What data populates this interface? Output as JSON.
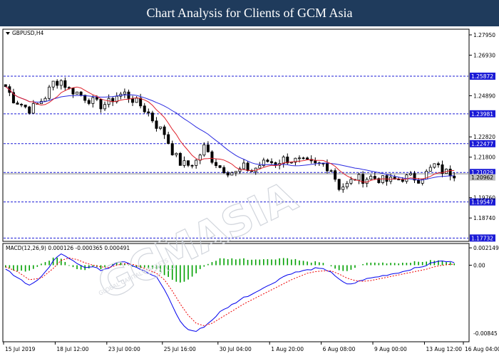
{
  "banner": {
    "title": "Chart Analysis for Clients of GCM Asia",
    "bg_color": "#1f3b5c"
  },
  "watermark": {
    "text": "GCMASIA",
    "subtext": "GLOBAL CAPITAL MARKETS"
  },
  "chart_data": [
    {
      "type": "candlestick",
      "symbol_label": "GBPUSD,H4",
      "ylim": [
        1.176,
        1.282
      ],
      "y_ticks": [
        1.2795,
        1.2693,
        1.2489,
        1.2282,
        1.218,
        1.1976,
        1.1874
      ],
      "current_price": 1.20962,
      "price_line_label": "1.20962",
      "levels": [
        {
          "value": 1.25872,
          "label": "1.25872"
        },
        {
          "value": 1.23981,
          "label": "1.23981"
        },
        {
          "value": 1.22477,
          "label": "1.22477"
        },
        {
          "value": 1.21029,
          "label": "1.21029"
        },
        {
          "value": 1.19547,
          "label": "1.19547"
        },
        {
          "value": 1.17732,
          "label": "1.17732"
        }
      ],
      "level_color": "#1b1bd6",
      "ma_fast_color": "#e0202a",
      "ma_slow_color": "#2a2ae0",
      "up_color": "#00a000",
      "down_color": "#d00000",
      "anchors": [
        [
          0,
          1.2535
        ],
        [
          2,
          1.247
        ],
        [
          6,
          1.242
        ],
        [
          8,
          1.2445
        ],
        [
          10,
          1.2485
        ],
        [
          12,
          1.2555
        ],
        [
          14,
          1.2565
        ],
        [
          16,
          1.252
        ],
        [
          18,
          1.2505
        ],
        [
          20,
          1.248
        ],
        [
          22,
          1.246
        ],
        [
          24,
          1.244
        ],
        [
          26,
          1.2455
        ],
        [
          28,
          1.249
        ],
        [
          30,
          1.25
        ],
        [
          32,
          1.247
        ],
        [
          34,
          1.244
        ],
        [
          36,
          1.24
        ],
        [
          38,
          1.234
        ],
        [
          40,
          1.23
        ],
        [
          42,
          1.221
        ],
        [
          44,
          1.215
        ],
        [
          46,
          1.214
        ],
        [
          48,
          1.216
        ],
        [
          50,
          1.223
        ],
        [
          52,
          1.217
        ],
        [
          54,
          1.213
        ],
        [
          56,
          1.211
        ],
        [
          58,
          1.21
        ],
        [
          60,
          1.213
        ],
        [
          62,
          1.211
        ],
        [
          64,
          1.214
        ],
        [
          66,
          1.216
        ],
        [
          68,
          1.215
        ],
        [
          70,
          1.217
        ],
        [
          72,
          1.2165
        ],
        [
          74,
          1.216
        ],
        [
          76,
          1.215
        ],
        [
          78,
          1.214
        ],
        [
          80,
          1.2145
        ],
        [
          82,
          1.212
        ],
        [
          84,
          1.203
        ],
        [
          86,
          1.204
        ],
        [
          88,
          1.2075
        ],
        [
          90,
          1.207
        ],
        [
          92,
          1.208
        ],
        [
          94,
          1.207
        ],
        [
          96,
          1.206
        ],
        [
          98,
          1.2065
        ],
        [
          100,
          1.2075
        ],
        [
          102,
          1.208
        ],
        [
          104,
          1.207
        ],
        [
          106,
          1.21
        ],
        [
          108,
          1.214
        ],
        [
          110,
          1.211
        ],
        [
          112,
          1.21
        ],
        [
          113,
          1.2096
        ]
      ]
    },
    {
      "type": "macd",
      "label": "MACD(12,26,9) 0.000126 -0.000365 0.000491",
      "ylim": [
        -0.0094,
        0.0026
      ],
      "y_ticks": [
        0.002149,
        0.0
      ],
      "y_tick_labels": [
        "0.002149",
        "0.00",
        "-0.00845"
      ],
      "bottom_value": -0.00845,
      "hist_color": "#00a000",
      "macd_color": "#0000ee",
      "signal_color": "#ee0000",
      "macd_anchors": [
        [
          0,
          -0.0005
        ],
        [
          3,
          -0.0015
        ],
        [
          6,
          -0.0025
        ],
        [
          9,
          -0.0015
        ],
        [
          12,
          0.0005
        ],
        [
          14,
          0.0015
        ],
        [
          16,
          0.0009
        ],
        [
          18,
          0.0003
        ],
        [
          20,
          -0.0003
        ],
        [
          22,
          -0.0002
        ],
        [
          24,
          -0.0006
        ],
        [
          26,
          -0.0003
        ],
        [
          28,
          0.0004
        ],
        [
          30,
          0.0005
        ],
        [
          32,
          0.0
        ],
        [
          34,
          -0.0005
        ],
        [
          36,
          -0.001
        ],
        [
          38,
          -0.0015
        ],
        [
          40,
          -0.003
        ],
        [
          42,
          -0.005
        ],
        [
          44,
          -0.007
        ],
        [
          46,
          -0.008
        ],
        [
          48,
          -0.0082
        ],
        [
          50,
          -0.0076
        ],
        [
          52,
          -0.0068
        ],
        [
          54,
          -0.0058
        ],
        [
          56,
          -0.0052
        ],
        [
          58,
          -0.0046
        ],
        [
          60,
          -0.004
        ],
        [
          62,
          -0.0036
        ],
        [
          64,
          -0.003
        ],
        [
          66,
          -0.0026
        ],
        [
          68,
          -0.002
        ],
        [
          70,
          -0.0014
        ],
        [
          72,
          -0.001
        ],
        [
          74,
          -0.0008
        ],
        [
          76,
          -0.0006
        ],
        [
          78,
          -0.0004
        ],
        [
          80,
          -0.0005
        ],
        [
          82,
          -0.0008
        ],
        [
          84,
          -0.0018
        ],
        [
          86,
          -0.0024
        ],
        [
          88,
          -0.0022
        ],
        [
          90,
          -0.0018
        ],
        [
          92,
          -0.0016
        ],
        [
          94,
          -0.0014
        ],
        [
          96,
          -0.0012
        ],
        [
          98,
          -0.001
        ],
        [
          100,
          -0.0008
        ],
        [
          102,
          -0.0005
        ],
        [
          104,
          -0.0003
        ],
        [
          106,
          0.0
        ],
        [
          108,
          0.0004
        ],
        [
          110,
          0.0005
        ],
        [
          112,
          0.0004
        ],
        [
          113,
          0.0004
        ]
      ],
      "signal_anchors": [
        [
          0,
          -0.0002
        ],
        [
          3,
          -0.0008
        ],
        [
          6,
          -0.0018
        ],
        [
          9,
          -0.0016
        ],
        [
          12,
          -0.0004
        ],
        [
          14,
          0.0006
        ],
        [
          16,
          0.0009
        ],
        [
          18,
          0.0007
        ],
        [
          20,
          0.0003
        ],
        [
          22,
          0.0
        ],
        [
          24,
          -0.0002
        ],
        [
          26,
          -0.0003
        ],
        [
          28,
          0.0
        ],
        [
          30,
          0.0002
        ],
        [
          32,
          0.0001
        ],
        [
          34,
          -0.0002
        ],
        [
          36,
          -0.0006
        ],
        [
          38,
          -0.001
        ],
        [
          40,
          -0.0018
        ],
        [
          42,
          -0.0032
        ],
        [
          44,
          -0.0048
        ],
        [
          46,
          -0.0062
        ],
        [
          48,
          -0.0072
        ],
        [
          50,
          -0.0075
        ],
        [
          52,
          -0.0072
        ],
        [
          54,
          -0.0066
        ],
        [
          56,
          -0.006
        ],
        [
          58,
          -0.0054
        ],
        [
          60,
          -0.0048
        ],
        [
          62,
          -0.0043
        ],
        [
          64,
          -0.0038
        ],
        [
          66,
          -0.0033
        ],
        [
          68,
          -0.0028
        ],
        [
          70,
          -0.0023
        ],
        [
          72,
          -0.0018
        ],
        [
          74,
          -0.0014
        ],
        [
          76,
          -0.001
        ],
        [
          78,
          -0.0008
        ],
        [
          80,
          -0.0007
        ],
        [
          82,
          -0.0007
        ],
        [
          84,
          -0.0011
        ],
        [
          86,
          -0.0016
        ],
        [
          88,
          -0.0019
        ],
        [
          90,
          -0.002
        ],
        [
          92,
          -0.0019
        ],
        [
          94,
          -0.0017
        ],
        [
          96,
          -0.0015
        ],
        [
          98,
          -0.0013
        ],
        [
          100,
          -0.0011
        ],
        [
          102,
          -0.0009
        ],
        [
          104,
          -0.0007
        ],
        [
          106,
          -0.0005
        ],
        [
          108,
          -0.0002
        ],
        [
          110,
          0.0
        ],
        [
          112,
          0.0001
        ],
        [
          113,
          0.0001
        ]
      ]
    }
  ],
  "x_axis": {
    "count": 114,
    "labels": [
      {
        "index": 0,
        "text": "15 Jul 2019"
      },
      {
        "index": 13,
        "text": "18 Jul 12:00"
      },
      {
        "index": 26,
        "text": "23 Jul 00:00"
      },
      {
        "index": 40,
        "text": "25 Jul 16:00"
      },
      {
        "index": 54,
        "text": "30 Jul 04:00"
      },
      {
        "index": 67,
        "text": "1 Aug 20:00"
      },
      {
        "index": 80,
        "text": "6 Aug 08:00"
      },
      {
        "index": 93,
        "text": "9 Aug 00:00"
      },
      {
        "index": 106,
        "text": "13 Aug 12:00"
      },
      {
        "index": 118,
        "text": "16 Aug 04:00"
      }
    ]
  }
}
